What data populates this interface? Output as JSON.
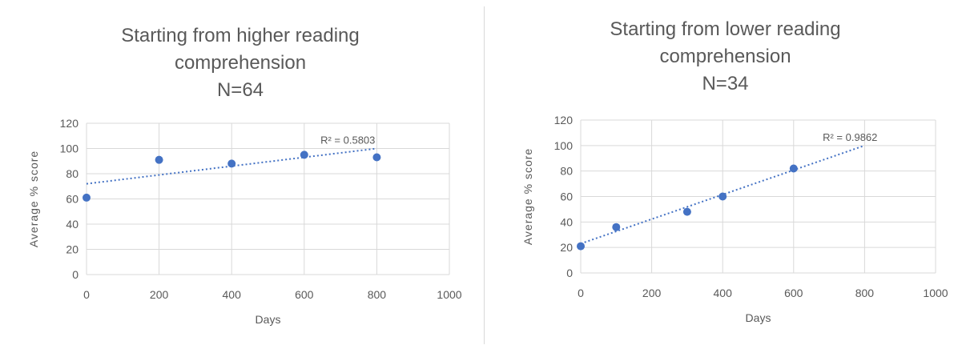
{
  "chart_data": [
    {
      "type": "scatter",
      "title_lines": [
        "Starting from higher reading",
        "comprehension",
        "N=64"
      ],
      "xlabel": "Days",
      "ylabel": "Average % score",
      "xlim": [
        0,
        1000
      ],
      "ylim": [
        0,
        120
      ],
      "xticks": [
        0,
        200,
        400,
        600,
        800,
        1000
      ],
      "yticks": [
        0,
        20,
        40,
        60,
        80,
        100,
        120
      ],
      "grid": true,
      "legend": "none",
      "marker_color": "#4472c4",
      "points": [
        {
          "x": 0,
          "y": 61
        },
        {
          "x": 200,
          "y": 91
        },
        {
          "x": 400,
          "y": 88
        },
        {
          "x": 600,
          "y": 95
        },
        {
          "x": 800,
          "y": 93
        }
      ],
      "trendline": {
        "type": "linear",
        "x": [
          0,
          800
        ],
        "y": [
          72,
          100
        ],
        "r2_label": "R² = 0.5803",
        "style": "dotted"
      }
    },
    {
      "type": "scatter",
      "title_lines": [
        "Starting from lower reading",
        "comprehension",
        "N=34"
      ],
      "xlabel": "Days",
      "ylabel": "Average % score",
      "xlim": [
        0,
        1000
      ],
      "ylim": [
        0,
        120
      ],
      "xticks": [
        0,
        200,
        400,
        600,
        800,
        1000
      ],
      "yticks": [
        0,
        20,
        40,
        60,
        80,
        100,
        120
      ],
      "grid": true,
      "legend": "none",
      "marker_color": "#4472c4",
      "points": [
        {
          "x": 0,
          "y": 21
        },
        {
          "x": 100,
          "y": 36
        },
        {
          "x": 300,
          "y": 48
        },
        {
          "x": 400,
          "y": 60
        },
        {
          "x": 600,
          "y": 82
        }
      ],
      "trendline": {
        "type": "linear",
        "x": [
          0,
          800
        ],
        "y": [
          23,
          100
        ],
        "r2_label": "R² = 0.9862",
        "style": "dotted"
      }
    }
  ]
}
